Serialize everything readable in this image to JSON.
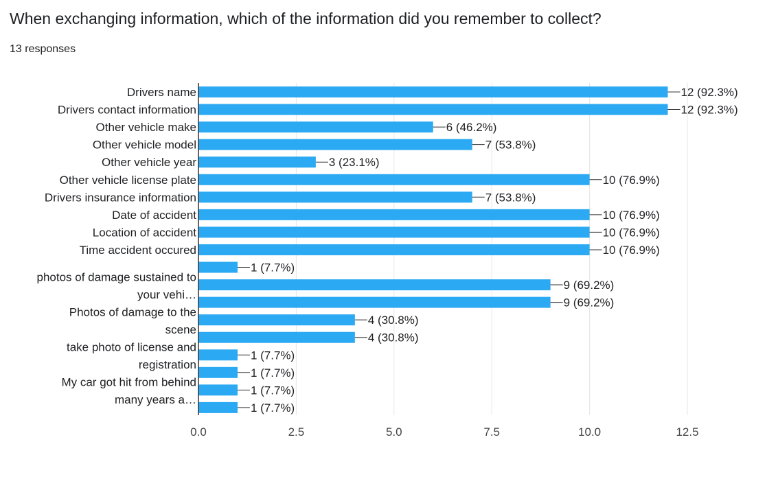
{
  "header": {
    "title": "When exchanging information, which of the information did you remember to collect?",
    "responses": "13 responses"
  },
  "colors": {
    "bar": "#2ba9f2",
    "grid": "#e6e6e6",
    "axis": "#333333",
    "leader": "#333333"
  },
  "chart_data": {
    "type": "bar",
    "orientation": "horizontal",
    "grid": true,
    "xlim": [
      0,
      12.5
    ],
    "xticks": [
      0,
      2.5,
      5,
      7.5,
      10,
      12.5
    ],
    "xtick_labels": [
      "0.0",
      "2.5",
      "5.0",
      "7.5",
      "10.0",
      "12.5"
    ],
    "category_labels": [
      [
        "Drivers name"
      ],
      [
        "Drivers contact information"
      ],
      [
        "Other vehicle make"
      ],
      [
        "Other vehicle model"
      ],
      [
        "Other vehicle year"
      ],
      [
        "Other vehicle license plate"
      ],
      [
        "Drivers insurance information"
      ],
      [
        "Date of accident"
      ],
      [
        "Location of accident"
      ],
      [
        "Time accident occured"
      ],
      [],
      [
        "photos of damage sustained to",
        "your vehi…"
      ],
      [],
      [
        "Photos of damage to the",
        "scene"
      ],
      [],
      [
        "take photo of license and",
        "registration"
      ],
      [],
      [
        "My car got hit from behind",
        "many years a…"
      ],
      []
    ],
    "values": [
      12,
      12,
      6,
      7,
      3,
      10,
      7,
      10,
      10,
      10,
      1,
      9,
      9,
      4,
      4,
      1,
      1,
      1,
      1
    ],
    "value_labels": [
      "12 (92.3%)",
      "12 (92.3%)",
      "6 (46.2%)",
      "7 (53.8%)",
      "3 (23.1%)",
      "10 (76.9%)",
      "7 (53.8%)",
      "10 (76.9%)",
      "10 (76.9%)",
      "10 (76.9%)",
      "1 (7.7%)",
      "9 (69.2%)",
      "9 (69.2%)",
      "4 (30.8%)",
      "4 (30.8%)",
      "1 (7.7%)",
      "1 (7.7%)",
      "1 (7.7%)",
      "1 (7.7%)"
    ]
  }
}
